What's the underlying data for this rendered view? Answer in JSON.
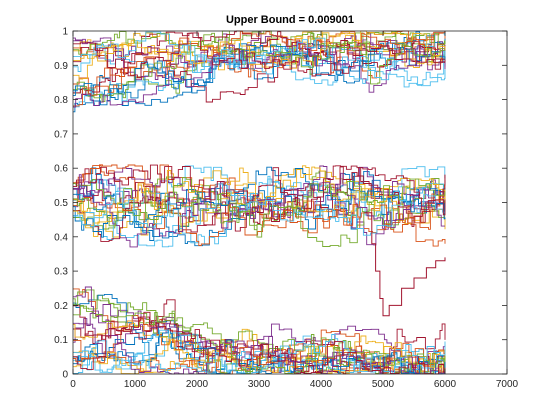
{
  "chart_data": {
    "type": "line",
    "title": "Upper Bound = 0.009001",
    "xlabel": "",
    "ylabel": "",
    "xlim": [
      0,
      7000
    ],
    "ylim": [
      0,
      1
    ],
    "x_ticks": [
      0,
      1000,
      2000,
      3000,
      4000,
      5000,
      6000,
      7000
    ],
    "y_ticks": [
      0,
      0.1,
      0.2,
      0.3,
      0.4,
      0.5,
      0.6,
      0.7,
      0.8,
      0.9,
      1
    ],
    "x_tick_labels": [
      "0",
      "1000",
      "2000",
      "3000",
      "4000",
      "5000",
      "6000",
      "7000"
    ],
    "y_tick_labels": [
      "0",
      "0.1",
      "0.2",
      "0.3",
      "0.4",
      "0.5",
      "0.6",
      "0.7",
      "0.8",
      "0.9",
      "1"
    ],
    "grid": false,
    "legend": "none",
    "colors": [
      "#0072bd",
      "#d95319",
      "#edb120",
      "#7e2f8e",
      "#77ac30",
      "#4dbeee",
      "#a2142f"
    ],
    "series_length": 6000,
    "bands": [
      {
        "label": "high",
        "count": 21,
        "center": 0.95,
        "start_range": [
          0.76,
          0.98
        ],
        "min": 0.78,
        "max": 1.0
      },
      {
        "label": "middle",
        "count": 21,
        "center": 0.5,
        "start_range": [
          0.45,
          0.57
        ],
        "min": 0.37,
        "max": 0.61
      },
      {
        "label": "low",
        "count": 21,
        "center": 0.03,
        "start_range": [
          0.0,
          0.25
        ],
        "min": 0.0,
        "max": 0.32
      }
    ],
    "notable": [
      {
        "description": "one series drops from ~0.48 near x=4800 to a minimum ~0.17 near x=5000, then rises to ~0.34 at x=6000",
        "points": [
          [
            4700,
            0.47
          ],
          [
            4820,
            0.38
          ],
          [
            4880,
            0.3
          ],
          [
            4950,
            0.22
          ],
          [
            5000,
            0.17
          ],
          [
            5100,
            0.2
          ],
          [
            5300,
            0.25
          ],
          [
            5500,
            0.28
          ],
          [
            5700,
            0.31
          ],
          [
            5850,
            0.33
          ],
          [
            6000,
            0.34
          ]
        ]
      }
    ]
  }
}
